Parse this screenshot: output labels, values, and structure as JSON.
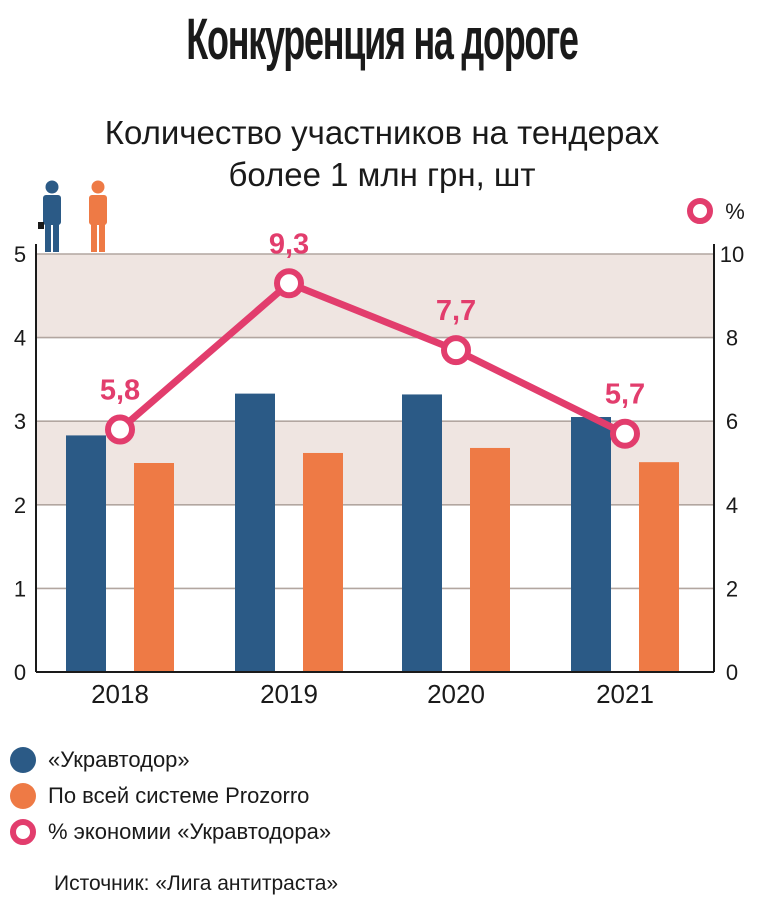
{
  "headline": "Конкуренция на дороге",
  "colors": {
    "ukravtodor": "#2b5a86",
    "prozorro": "#ee7a45",
    "savings": "#e23d6d",
    "band": "#efe5e1",
    "grid": "#b2a6a0"
  },
  "legend": {
    "ukravtodor": "«Укравтодор»",
    "prozorro": "По всей системе Prozorro",
    "savings": "% экономии «Укравтодора»"
  },
  "source": "Источник: «Лига антитраста»",
  "chart_data": {
    "type": "bar+line",
    "title": "Количество участников на тендерах более 1 млн грн, шт",
    "title_lines": [
      "Количество участников на тендерах",
      "более 1 млн грн, шт"
    ],
    "categories": [
      "2018",
      "2019",
      "2020",
      "2021"
    ],
    "series": [
      {
        "name": "«Укравтодор»",
        "type": "bar",
        "axis": "left",
        "values": [
          2.83,
          3.33,
          3.32,
          3.05
        ]
      },
      {
        "name": "По всей системе Prozorro",
        "type": "bar",
        "axis": "left",
        "values": [
          2.5,
          2.62,
          2.68,
          2.51
        ]
      },
      {
        "name": "% экономии «Укравтодора»",
        "type": "line",
        "axis": "right",
        "values": [
          5.8,
          9.3,
          7.7,
          5.7
        ],
        "labels": [
          "5,8",
          "9,3",
          "7,7",
          "5,7"
        ]
      }
    ],
    "y_left": {
      "lim": [
        0,
        5
      ],
      "ticks": [
        "0",
        "1",
        "2",
        "3",
        "4",
        "5"
      ]
    },
    "y_right": {
      "lim": [
        0,
        10
      ],
      "ticks": [
        "0",
        "2",
        "4",
        "6",
        "8",
        "10"
      ],
      "unit": "%"
    },
    "grid": true,
    "legend_position": "bottom-left"
  }
}
